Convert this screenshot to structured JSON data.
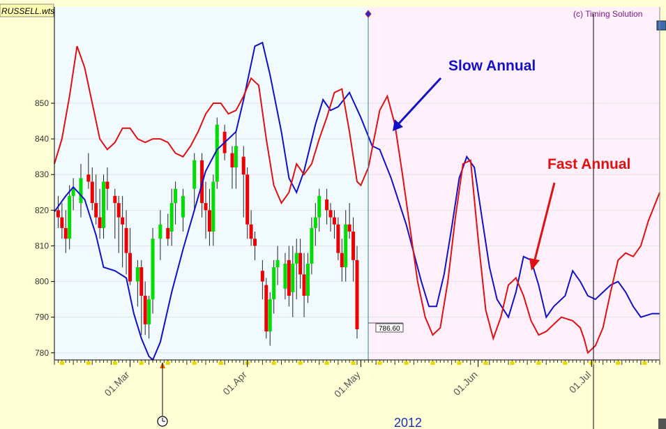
{
  "chart_data": {
    "type": "line",
    "symbol": "RUSSELL.wts",
    "copyright": "(c) Timing Solution",
    "year_label": "2012",
    "ylim": [
      778,
      877
    ],
    "y_ticks": [
      780,
      790,
      800,
      810,
      820,
      830,
      840,
      850
    ],
    "date_ticks": [
      {
        "label": "01.Mar",
        "day": 20
      },
      {
        "label": "01.Apr",
        "day": 51
      },
      {
        "label": "01.May",
        "day": 81
      },
      {
        "label": "01.Jun",
        "day": 112
      },
      {
        "label": "01.Jul",
        "day": 142
      }
    ],
    "xlim": [
      0,
      160
    ],
    "last_price": "786.60",
    "last_price_value": 786.6,
    "forecast_start_day": 83,
    "annotations": {
      "slow": {
        "label": "Slow Annual",
        "color": "#1010c8"
      },
      "fast": {
        "label": "Fast Annual",
        "color": "#e01010"
      }
    },
    "colors": {
      "history_bg": "#f0faff",
      "forecast_bg": "#fff0fb",
      "up_candle": "#00dd00",
      "down_candle": "#ee0000",
      "slow_line": "#1010c8",
      "fast_line": "#e01010"
    },
    "series": [
      {
        "name": "Slow Annual",
        "points": [
          [
            0,
            819.6
          ],
          [
            3,
            824
          ],
          [
            5,
            826.5
          ],
          [
            8,
            823
          ],
          [
            11,
            813
          ],
          [
            13,
            804
          ],
          [
            16,
            803
          ],
          [
            19,
            801
          ],
          [
            21,
            791
          ],
          [
            23,
            784
          ],
          [
            25,
            779
          ],
          [
            26,
            778
          ],
          [
            28,
            783
          ],
          [
            31,
            797
          ],
          [
            34,
            809
          ],
          [
            37,
            820
          ],
          [
            40,
            831
          ],
          [
            43,
            837
          ],
          [
            46,
            840
          ],
          [
            48,
            842
          ],
          [
            50,
            851
          ],
          [
            53,
            866
          ],
          [
            55,
            867
          ],
          [
            57,
            858
          ],
          [
            60,
            842
          ],
          [
            62,
            829
          ],
          [
            64,
            825
          ],
          [
            66,
            831
          ],
          [
            69,
            844
          ],
          [
            71,
            851
          ],
          [
            73,
            848
          ],
          [
            75,
            849
          ],
          [
            78,
            853
          ],
          [
            81,
            846
          ],
          [
            84,
            838
          ],
          [
            86,
            837
          ],
          [
            89,
            829
          ],
          [
            93,
            816
          ],
          [
            97,
            800
          ],
          [
            99,
            793
          ],
          [
            101,
            793
          ],
          [
            103,
            802
          ],
          [
            105,
            815
          ],
          [
            107,
            829
          ],
          [
            109,
            835
          ],
          [
            111,
            832
          ],
          [
            113,
            818
          ],
          [
            115,
            804
          ],
          [
            117,
            795
          ],
          [
            120,
            790
          ],
          [
            122,
            797
          ],
          [
            124,
            807
          ],
          [
            126,
            806
          ],
          [
            128,
            799
          ],
          [
            130,
            790
          ],
          [
            132,
            793
          ],
          [
            135,
            796
          ],
          [
            137,
            803
          ],
          [
            139,
            800
          ],
          [
            141,
            796
          ],
          [
            143,
            795
          ],
          [
            145,
            797
          ],
          [
            147,
            799
          ],
          [
            149,
            800
          ],
          [
            151,
            797
          ],
          [
            153,
            793
          ],
          [
            155,
            790
          ],
          [
            158,
            791
          ],
          [
            160,
            791
          ]
        ]
      },
      {
        "name": "Fast Annual",
        "points": [
          [
            0,
            833
          ],
          [
            2,
            840
          ],
          [
            4,
            852
          ],
          [
            6,
            866
          ],
          [
            8,
            860
          ],
          [
            10,
            850
          ],
          [
            12,
            840
          ],
          [
            14,
            837
          ],
          [
            16,
            839
          ],
          [
            18,
            843
          ],
          [
            20,
            843
          ],
          [
            22,
            840
          ],
          [
            24,
            839
          ],
          [
            26,
            840
          ],
          [
            28,
            840
          ],
          [
            30,
            839
          ],
          [
            32,
            836
          ],
          [
            34,
            835
          ],
          [
            36,
            838
          ],
          [
            38,
            842
          ],
          [
            40,
            847
          ],
          [
            42,
            850
          ],
          [
            44,
            850
          ],
          [
            46,
            847
          ],
          [
            48,
            848
          ],
          [
            50,
            852
          ],
          [
            52,
            857
          ],
          [
            54,
            855
          ],
          [
            56,
            840
          ],
          [
            58,
            827
          ],
          [
            60,
            822
          ],
          [
            62,
            825
          ],
          [
            64,
            833
          ],
          [
            66,
            830
          ],
          [
            68,
            833
          ],
          [
            70,
            840
          ],
          [
            72,
            846
          ],
          [
            74,
            853
          ],
          [
            76,
            854
          ],
          [
            78,
            842
          ],
          [
            80,
            828
          ],
          [
            81,
            827
          ],
          [
            83,
            832
          ],
          [
            86,
            848
          ],
          [
            88,
            852
          ],
          [
            90,
            844
          ],
          [
            92,
            830
          ],
          [
            94,
            815
          ],
          [
            96,
            800
          ],
          [
            98,
            790
          ],
          [
            100,
            785
          ],
          [
            102,
            787
          ],
          [
            104,
            800
          ],
          [
            106,
            818
          ],
          [
            108,
            833
          ],
          [
            110,
            834
          ],
          [
            112,
            812
          ],
          [
            114,
            792
          ],
          [
            116,
            784
          ],
          [
            118,
            790
          ],
          [
            120,
            799
          ],
          [
            122,
            801
          ],
          [
            124,
            796
          ],
          [
            126,
            789
          ],
          [
            128,
            785
          ],
          [
            130,
            786
          ],
          [
            132,
            788
          ],
          [
            134,
            790
          ],
          [
            137,
            789
          ],
          [
            139,
            787
          ],
          [
            140,
            784
          ],
          [
            141,
            780
          ],
          [
            143,
            782
          ],
          [
            145,
            787
          ],
          [
            147,
            797
          ],
          [
            149,
            806
          ],
          [
            151,
            808
          ],
          [
            153,
            807
          ],
          [
            155,
            810
          ],
          [
            157,
            817
          ],
          [
            160,
            825
          ]
        ]
      }
    ],
    "candles": [
      [
        1,
        820,
        824,
        815,
        818
      ],
      [
        2,
        818,
        822,
        812,
        815
      ],
      [
        3,
        815,
        820,
        808,
        812
      ],
      [
        4,
        812,
        827,
        809,
        824
      ],
      [
        5,
        824,
        829,
        820,
        826
      ],
      [
        7,
        822,
        833,
        818,
        829
      ],
      [
        9,
        830,
        836,
        826,
        828
      ],
      [
        10,
        828,
        832,
        820,
        822
      ],
      [
        11,
        822,
        830,
        816,
        818
      ],
      [
        12,
        818,
        826,
        812,
        815
      ],
      [
        13,
        815,
        830,
        812,
        828
      ],
      [
        14,
        828,
        832,
        820,
        826
      ],
      [
        16,
        824,
        826,
        812,
        822
      ],
      [
        17,
        822,
        824,
        808,
        818
      ],
      [
        18,
        818,
        824,
        804,
        816
      ],
      [
        19,
        815,
        820,
        802,
        808
      ],
      [
        20,
        808,
        815,
        799,
        800
      ],
      [
        22,
        800,
        806,
        793,
        804
      ],
      [
        23,
        804,
        806,
        785,
        796
      ],
      [
        24,
        796,
        800,
        785,
        788
      ],
      [
        25,
        788,
        796,
        784,
        795
      ],
      [
        26,
        795,
        815,
        791,
        812
      ],
      [
        28,
        812,
        820,
        806,
        816
      ],
      [
        30,
        815,
        819,
        810,
        812
      ],
      [
        31,
        814,
        826,
        810,
        822
      ],
      [
        32,
        822,
        828,
        816,
        826
      ],
      [
        34,
        818,
        826,
        814,
        824
      ],
      [
        37,
        826,
        836,
        820,
        834
      ],
      [
        39,
        834,
        836,
        818,
        822
      ],
      [
        40,
        822,
        828,
        812,
        820
      ],
      [
        41,
        820,
        826,
        810,
        814
      ],
      [
        42,
        814,
        830,
        810,
        828
      ],
      [
        43,
        828,
        846,
        826,
        844
      ],
      [
        45,
        842,
        844,
        834,
        836
      ],
      [
        47,
        836,
        838,
        826,
        832
      ],
      [
        48,
        832,
        842,
        826,
        838
      ],
      [
        50,
        835,
        838,
        818,
        830
      ],
      [
        51,
        830,
        832,
        812,
        816
      ],
      [
        52,
        816,
        820,
        810,
        812
      ],
      [
        53,
        812,
        814,
        806,
        810
      ],
      [
        55,
        803,
        806,
        795,
        800
      ],
      [
        56,
        799,
        801,
        784,
        786
      ],
      [
        57,
        786,
        797,
        782,
        795
      ],
      [
        58,
        795,
        806,
        791,
        804
      ],
      [
        59,
        804,
        810,
        799,
        806
      ],
      [
        61,
        798,
        808,
        795,
        805
      ],
      [
        62,
        806,
        810,
        793,
        796
      ],
      [
        63,
        797,
        810,
        790,
        805
      ],
      [
        64,
        805,
        812,
        795,
        808
      ],
      [
        65,
        808,
        812,
        798,
        802
      ],
      [
        66,
        802,
        808,
        790,
        796
      ],
      [
        67,
        796,
        808,
        794,
        805
      ],
      [
        68,
        805,
        818,
        802,
        815
      ],
      [
        69,
        815,
        822,
        810,
        818
      ],
      [
        70,
        818,
        826,
        814,
        824
      ],
      [
        72,
        823,
        826,
        816,
        820
      ],
      [
        73,
        820,
        822,
        814,
        818
      ],
      [
        74,
        818,
        820,
        812,
        816
      ],
      [
        75,
        816,
        818,
        806,
        808
      ],
      [
        76,
        808,
        812,
        800,
        804
      ],
      [
        77,
        804,
        820,
        800,
        816
      ],
      [
        78,
        816,
        822,
        812,
        814
      ],
      [
        79,
        814,
        818,
        800,
        806
      ],
      [
        80,
        806,
        810,
        784,
        786.6
      ]
    ]
  }
}
